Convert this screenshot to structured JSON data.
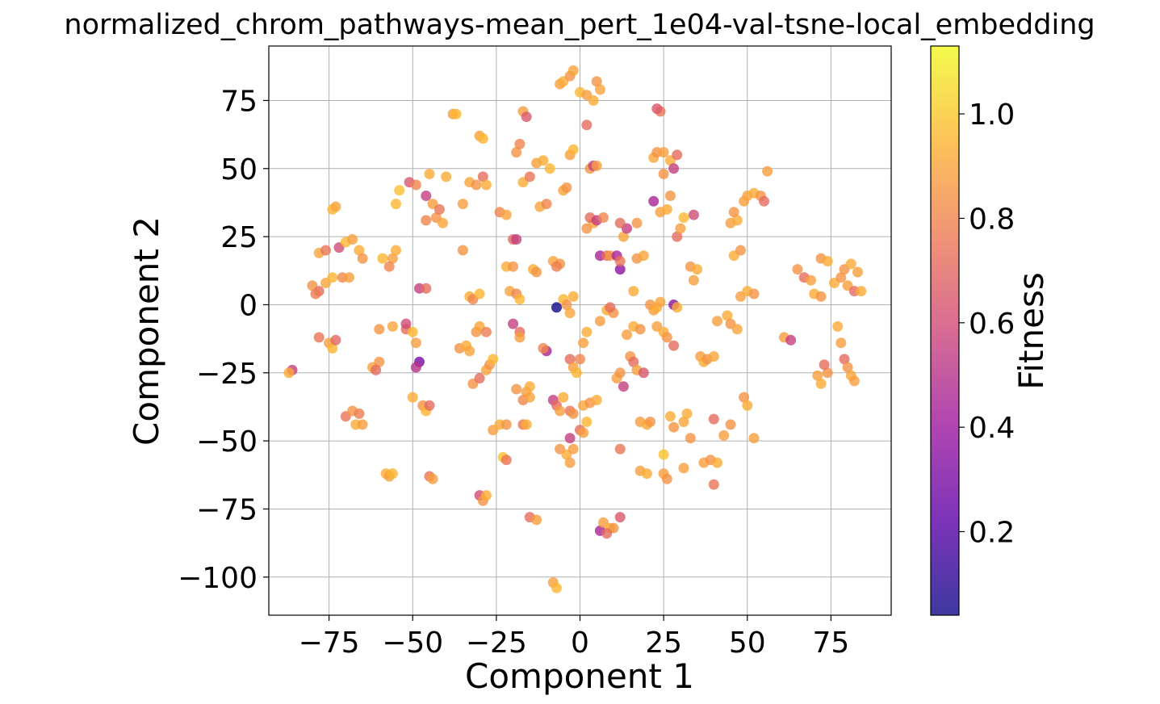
{
  "chart_data": {
    "type": "scatter",
    "title": "normalized_chrom_pathways-mean_pert_1e04-val-tsne-local_embedding",
    "xlabel": "Component 1",
    "ylabel": "Component 2",
    "xlim": [
      -93,
      93
    ],
    "ylim": [
      -114,
      95
    ],
    "xticks": [
      -75,
      -50,
      -25,
      0,
      25,
      50,
      75
    ],
    "yticks": [
      -100,
      -75,
      -50,
      -25,
      0,
      25,
      50,
      75
    ],
    "xtick_labels": [
      "−75",
      "−50",
      "−25",
      "0",
      "25",
      "50",
      "75"
    ],
    "ytick_labels": [
      "−100",
      "−75",
      "−50",
      "−25",
      "0",
      "25",
      "50",
      "75"
    ],
    "grid": true,
    "colorbar": {
      "label": "Fitness",
      "cmap": "plasma",
      "range": [
        0.04,
        1.13
      ],
      "ticks": [
        0.2,
        0.4,
        0.6,
        0.8,
        1.0
      ],
      "tick_labels": [
        "0.2",
        "0.4",
        "0.6",
        "0.8",
        "1.0"
      ],
      "gradient_colors": [
        "#0d0887",
        "#5c01a6",
        "#9c179e",
        "#cc4778",
        "#ed7953",
        "#fdb42f",
        "#f0f921"
      ],
      "point_alpha": 0.8
    },
    "points": [
      [
        -86,
        -24,
        0.55
      ],
      [
        -87,
        -25,
        0.92
      ],
      [
        -75,
        -14,
        0.88
      ],
      [
        -78,
        -12,
        0.75
      ],
      [
        -74,
        -16,
        0.95
      ],
      [
        -73,
        -13,
        0.7
      ],
      [
        -80,
        7,
        0.85
      ],
      [
        -78,
        5,
        0.72
      ],
      [
        -76,
        8,
        0.9
      ],
      [
        -79,
        4,
        0.78
      ],
      [
        -74,
        10,
        0.95
      ],
      [
        -71,
        10,
        0.82
      ],
      [
        -69,
        10,
        0.88
      ],
      [
        -78,
        19,
        0.9
      ],
      [
        -76,
        20,
        0.75
      ],
      [
        -72,
        21,
        0.6
      ],
      [
        -70,
        23,
        0.95
      ],
      [
        -68,
        24,
        0.88
      ],
      [
        -66,
        20,
        0.92
      ],
      [
        -65,
        17,
        0.85
      ],
      [
        -74,
        35,
        0.95
      ],
      [
        -73,
        36,
        0.9
      ],
      [
        -70,
        -41,
        0.75
      ],
      [
        -68,
        -39,
        0.85
      ],
      [
        -66,
        -40,
        0.78
      ],
      [
        -67,
        -44,
        0.92
      ],
      [
        -65,
        -44,
        0.88
      ],
      [
        -62,
        -23,
        0.9
      ],
      [
        -60,
        -21,
        0.85
      ],
      [
        -61,
        -24,
        0.72
      ],
      [
        -58,
        -62,
        0.92
      ],
      [
        -57,
        -63,
        0.88
      ],
      [
        -56,
        -62,
        0.95
      ],
      [
        -59,
        17,
        0.95
      ],
      [
        -56,
        17,
        0.88
      ],
      [
        -55,
        20,
        0.92
      ],
      [
        -57,
        14,
        0.8
      ],
      [
        -55,
        37,
        0.95
      ],
      [
        -54,
        42,
        0.98
      ],
      [
        -60,
        -9,
        0.85
      ],
      [
        -56,
        -8,
        0.9
      ],
      [
        -52,
        -9,
        0.72
      ],
      [
        -52,
        -7,
        0.6
      ],
      [
        -50,
        -10,
        0.95
      ],
      [
        -49,
        -14,
        0.88
      ],
      [
        -51,
        45,
        0.65
      ],
      [
        -49,
        44,
        0.8
      ],
      [
        -45,
        48,
        0.92
      ],
      [
        -46,
        40,
        0.55
      ],
      [
        -44,
        37,
        0.88
      ],
      [
        -48,
        6,
        0.55
      ],
      [
        -46,
        6,
        0.72
      ],
      [
        -48,
        -21,
        0.3
      ],
      [
        -49,
        -23,
        0.5
      ],
      [
        -50,
        -34,
        0.92
      ],
      [
        -47,
        -37,
        0.85
      ],
      [
        -46,
        -39,
        0.95
      ],
      [
        -45,
        -37,
        0.72
      ],
      [
        -45,
        -63,
        0.75
      ],
      [
        -44,
        -64,
        0.88
      ],
      [
        -46,
        31,
        0.8
      ],
      [
        -43,
        32,
        0.85
      ],
      [
        -41,
        30,
        0.9
      ],
      [
        -42,
        35,
        0.75
      ],
      [
        -40,
        47,
        0.92
      ],
      [
        -38,
        70,
        0.88
      ],
      [
        -37,
        70,
        0.95
      ],
      [
        -36,
        -16,
        0.85
      ],
      [
        -34,
        -15,
        0.92
      ],
      [
        -33,
        -17,
        0.9
      ],
      [
        -35,
        37,
        0.88
      ],
      [
        -35,
        20,
        0.85
      ],
      [
        -33,
        3,
        0.92
      ],
      [
        -32,
        2,
        0.8
      ],
      [
        -30,
        4,
        0.95
      ],
      [
        -33,
        45,
        0.9
      ],
      [
        -31,
        44,
        0.85
      ],
      [
        -29,
        47,
        0.72
      ],
      [
        -28,
        44,
        0.92
      ],
      [
        -30,
        62,
        0.88
      ],
      [
        -29,
        61,
        0.95
      ],
      [
        -31,
        -10,
        0.85
      ],
      [
        -30,
        -8,
        0.9
      ],
      [
        -28,
        -10,
        0.78
      ],
      [
        -32,
        -29,
        0.85
      ],
      [
        -30,
        -27,
        0.72
      ],
      [
        -28,
        -24,
        0.9
      ],
      [
        -27,
        -22,
        0.85
      ],
      [
        -26,
        -20,
        0.95
      ],
      [
        -30,
        -70,
        0.6
      ],
      [
        -29,
        -72,
        0.85
      ],
      [
        -28,
        -70,
        0.92
      ],
      [
        -26,
        -46,
        0.88
      ],
      [
        -24,
        -44,
        0.92
      ],
      [
        -22,
        -44,
        0.85
      ],
      [
        -23,
        -56,
        0.98
      ],
      [
        -22,
        -57,
        0.75
      ],
      [
        -24,
        34,
        0.8
      ],
      [
        -22,
        33,
        0.9
      ],
      [
        -22,
        14,
        0.92
      ],
      [
        -20,
        14,
        0.85
      ],
      [
        -21,
        5,
        0.9
      ],
      [
        -19,
        4,
        0.8
      ],
      [
        -18,
        2,
        0.95
      ],
      [
        -20,
        -7,
        0.55
      ],
      [
        -18,
        -10,
        0.72
      ],
      [
        -18,
        -12,
        0.88
      ],
      [
        -19,
        -31,
        0.85
      ],
      [
        -16,
        -32,
        0.88
      ],
      [
        -15,
        -30,
        0.92
      ],
      [
        -17,
        -35,
        0.8
      ],
      [
        -15,
        -34,
        0.9
      ],
      [
        -17,
        -44,
        0.75
      ],
      [
        -16,
        -44,
        0.92
      ],
      [
        -15,
        -78,
        0.72
      ],
      [
        -13,
        -79,
        0.88
      ],
      [
        -20,
        24,
        0.7
      ],
      [
        -19,
        24,
        0.55
      ],
      [
        -19,
        56,
        0.85
      ],
      [
        -18,
        59,
        0.8
      ],
      [
        -17,
        45,
        0.92
      ],
      [
        -15,
        47,
        0.75
      ],
      [
        -13,
        52,
        0.88
      ],
      [
        -11,
        53,
        0.92
      ],
      [
        -9,
        50,
        0.95
      ],
      [
        -17,
        71,
        0.88
      ],
      [
        -16,
        69,
        0.65
      ],
      [
        -14,
        13,
        0.92
      ],
      [
        -13,
        12,
        0.85
      ],
      [
        -12,
        36,
        0.9
      ],
      [
        -10,
        37,
        0.8
      ],
      [
        -10,
        -17,
        0.45
      ],
      [
        -11,
        -16,
        0.8
      ],
      [
        -8,
        -35,
        0.55
      ],
      [
        -7,
        -37,
        0.72
      ],
      [
        -6,
        -39,
        0.88
      ],
      [
        -5,
        -34,
        0.92
      ],
      [
        -8,
        16,
        0.9
      ],
      [
        -6,
        15,
        0.85
      ],
      [
        -7,
        14,
        0.78
      ],
      [
        -8,
        -102,
        0.88
      ],
      [
        -7,
        -104,
        0.95
      ],
      [
        -6,
        -53,
        0.85
      ],
      [
        -4,
        -55,
        0.92
      ],
      [
        -3,
        -58,
        0.88
      ],
      [
        -5,
        42,
        0.9
      ],
      [
        -4,
        43,
        0.85
      ],
      [
        -3,
        55,
        0.88
      ],
      [
        -2,
        57,
        0.95
      ],
      [
        -6,
        81,
        0.88
      ],
      [
        -5,
        82,
        0.92
      ],
      [
        -3,
        84,
        0.85
      ],
      [
        -2,
        86,
        0.9
      ],
      [
        -7,
        -1,
        0.05
      ],
      [
        -5,
        2,
        0.95
      ],
      [
        -4,
        0,
        0.85
      ],
      [
        -3,
        -3,
        0.9
      ],
      [
        -2,
        3,
        0.92
      ],
      [
        -3,
        -20,
        0.72
      ],
      [
        -2,
        -23,
        0.88
      ],
      [
        -1,
        -25,
        0.95
      ],
      [
        0,
        -20,
        0.8
      ],
      [
        -3,
        -39,
        0.75
      ],
      [
        -2,
        -40,
        0.85
      ],
      [
        -3,
        -49,
        0.55
      ],
      [
        -2,
        -53,
        0.88
      ],
      [
        0,
        -46,
        0.72
      ],
      [
        1,
        -47,
        0.88
      ],
      [
        1,
        -37,
        0.9
      ],
      [
        3,
        -36,
        0.85
      ],
      [
        5,
        -35,
        0.92
      ],
      [
        2,
        -43,
        0.95
      ],
      [
        1,
        -14,
        0.88
      ],
      [
        2,
        -10,
        0.92
      ],
      [
        0,
        78,
        0.95
      ],
      [
        2,
        77,
        0.88
      ],
      [
        4,
        75,
        0.92
      ],
      [
        5,
        82,
        0.85
      ],
      [
        6,
        79,
        0.9
      ],
      [
        2,
        66,
        0.72
      ],
      [
        3,
        50,
        0.85
      ],
      [
        4,
        51,
        0.55
      ],
      [
        5,
        51,
        0.88
      ],
      [
        2,
        28,
        0.85
      ],
      [
        4,
        30,
        0.9
      ],
      [
        3,
        32,
        0.72
      ],
      [
        5,
        31,
        0.55
      ],
      [
        7,
        32,
        0.8
      ],
      [
        6,
        18,
        0.45
      ],
      [
        8,
        18,
        0.72
      ],
      [
        9,
        18,
        0.85
      ],
      [
        6,
        -6,
        0.88
      ],
      [
        8,
        -2,
        0.92
      ],
      [
        10,
        -3,
        0.85
      ],
      [
        9,
        -1,
        0.72
      ],
      [
        6,
        -83,
        0.45
      ],
      [
        7,
        -80,
        0.88
      ],
      [
        9,
        -82,
        0.92
      ],
      [
        10,
        -82,
        0.85
      ],
      [
        8,
        -84,
        0.72
      ],
      [
        11,
        18,
        0.45
      ],
      [
        12,
        13,
        0.35
      ],
      [
        12,
        16,
        0.75
      ],
      [
        11,
        -27,
        0.88
      ],
      [
        12,
        -25,
        0.85
      ],
      [
        13,
        -30,
        0.55
      ],
      [
        12,
        -53,
        0.75
      ],
      [
        12,
        -78,
        0.65
      ],
      [
        13,
        25,
        0.9
      ],
      [
        14,
        28,
        0.55
      ],
      [
        12,
        30,
        0.72
      ],
      [
        17,
        30,
        0.85
      ],
      [
        14,
        -11,
        0.88
      ],
      [
        16,
        -8,
        0.92
      ],
      [
        18,
        -9,
        0.85
      ],
      [
        15,
        -19,
        0.85
      ],
      [
        16,
        -21,
        0.72
      ],
      [
        17,
        -24,
        0.88
      ],
      [
        19,
        -25,
        0.65
      ],
      [
        17,
        17,
        0.85
      ],
      [
        19,
        18,
        0.9
      ],
      [
        16,
        5,
        0.92
      ],
      [
        18,
        -43,
        0.88
      ],
      [
        20,
        -44,
        0.92
      ],
      [
        21,
        -43,
        0.85
      ],
      [
        18,
        -61,
        0.88
      ],
      [
        20,
        -62,
        0.92
      ],
      [
        21,
        0,
        0.85
      ],
      [
        22,
        -2,
        0.88
      ],
      [
        23,
        -1,
        0.92
      ],
      [
        24,
        1,
        0.9
      ],
      [
        22,
        54,
        0.9
      ],
      [
        23,
        56,
        0.85
      ],
      [
        25,
        56,
        0.88
      ],
      [
        27,
        53,
        0.92
      ],
      [
        25,
        48,
        0.85
      ],
      [
        28,
        50,
        0.55
      ],
      [
        29,
        55,
        0.72
      ],
      [
        24,
        71,
        0.75
      ],
      [
        23,
        72,
        0.65
      ],
      [
        22,
        38,
        0.45
      ],
      [
        24,
        34,
        0.88
      ],
      [
        26,
        35,
        0.92
      ],
      [
        27,
        40,
        0.85
      ],
      [
        23,
        -8,
        0.88
      ],
      [
        25,
        -10,
        0.92
      ],
      [
        26,
        -12,
        0.85
      ],
      [
        28,
        -15,
        0.72
      ],
      [
        25,
        -55,
        0.98
      ],
      [
        25,
        -62,
        0.88
      ],
      [
        26,
        -64,
        0.85
      ],
      [
        27,
        -41,
        0.92
      ],
      [
        28,
        0,
        0.35
      ],
      [
        29,
        -1,
        0.92
      ],
      [
        28,
        -45,
        0.85
      ],
      [
        31,
        -43,
        0.9
      ],
      [
        29,
        25,
        0.72
      ],
      [
        30,
        28,
        0.88
      ],
      [
        31,
        32,
        0.95
      ],
      [
        31,
        -60,
        0.88
      ],
      [
        33,
        -49,
        0.85
      ],
      [
        32,
        -40,
        0.92
      ],
      [
        33,
        14,
        0.85
      ],
      [
        35,
        13,
        0.92
      ],
      [
        34,
        9,
        0.88
      ],
      [
        34,
        33,
        0.6
      ],
      [
        36,
        -19,
        0.88
      ],
      [
        37,
        -21,
        0.92
      ],
      [
        38,
        -20,
        0.85
      ],
      [
        40,
        -19,
        0.9
      ],
      [
        37,
        -58,
        0.88
      ],
      [
        39,
        -57,
        0.85
      ],
      [
        41,
        -58,
        0.92
      ],
      [
        40,
        -66,
        0.75
      ],
      [
        40,
        -42,
        0.72
      ],
      [
        43,
        -48,
        0.88
      ],
      [
        45,
        -44,
        0.85
      ],
      [
        41,
        -6,
        0.88
      ],
      [
        44,
        -4,
        0.92
      ],
      [
        45,
        -7,
        0.85
      ],
      [
        47,
        -9,
        0.9
      ],
      [
        45,
        30,
        0.88
      ],
      [
        47,
        31,
        0.92
      ],
      [
        46,
        34,
        0.85
      ],
      [
        46,
        18,
        0.92
      ],
      [
        48,
        20,
        0.85
      ],
      [
        48,
        3,
        0.88
      ],
      [
        50,
        5,
        0.92
      ],
      [
        52,
        4,
        0.85
      ],
      [
        49,
        38,
        0.88
      ],
      [
        50,
        40,
        0.9
      ],
      [
        52,
        41,
        0.92
      ],
      [
        54,
        40,
        0.85
      ],
      [
        55,
        38,
        0.72
      ],
      [
        49,
        -34,
        0.85
      ],
      [
        50,
        -37,
        0.92
      ],
      [
        52,
        -49,
        0.88
      ],
      [
        56,
        49,
        0.88
      ],
      [
        61,
        -12,
        0.88
      ],
      [
        63,
        -13,
        0.55
      ],
      [
        65,
        13,
        0.85
      ],
      [
        67,
        10,
        0.72
      ],
      [
        69,
        9,
        0.88
      ],
      [
        70,
        4,
        0.92
      ],
      [
        72,
        3,
        0.85
      ],
      [
        71,
        -26,
        0.88
      ],
      [
        72,
        -29,
        0.92
      ],
      [
        74,
        -25,
        0.85
      ],
      [
        73,
        -22,
        0.72
      ],
      [
        72,
        17,
        0.85
      ],
      [
        74,
        16,
        0.92
      ],
      [
        77,
        -8,
        0.92
      ],
      [
        78,
        -14,
        0.88
      ],
      [
        79,
        -20,
        0.72
      ],
      [
        80,
        -23,
        0.85
      ],
      [
        81,
        -26,
        0.9
      ],
      [
        76,
        8,
        0.92
      ],
      [
        78,
        10,
        0.85
      ],
      [
        80,
        7,
        0.88
      ],
      [
        82,
        5,
        0.72
      ],
      [
        84,
        5,
        0.92
      ],
      [
        79,
        13,
        0.85
      ],
      [
        81,
        15,
        0.92
      ],
      [
        83,
        12,
        0.88
      ],
      [
        82,
        -28,
        0.88
      ]
    ]
  }
}
